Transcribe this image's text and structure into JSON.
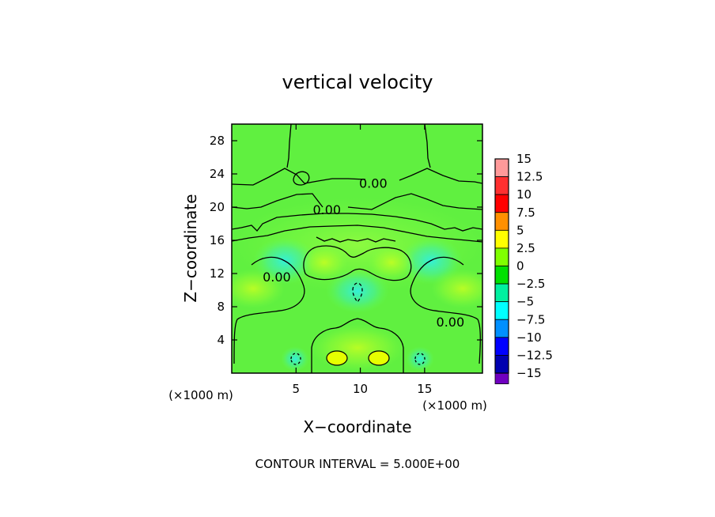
{
  "chart_data": {
    "type": "contour",
    "title": "vertical velocity",
    "xlabel": "X−coordinate",
    "ylabel": "Z−coordinate",
    "x_unit_label": "(×1000 m)",
    "z_unit_label": "(×1000 m)",
    "xlim": [
      0,
      19.5
    ],
    "ylim": [
      0,
      30
    ],
    "x_ticks": [
      5,
      10,
      15
    ],
    "y_ticks": [
      4,
      8,
      12,
      16,
      20,
      24,
      28
    ],
    "contour_interval_text": "CONTOUR INTERVAL = 5.000E+00",
    "contour_labels": [
      {
        "text": "0.00",
        "x": 11.0,
        "y": 22.9
      },
      {
        "text": "0.00",
        "x": 7.4,
        "y": 19.7
      },
      {
        "text": "0.00",
        "x": 3.5,
        "y": 11.6
      },
      {
        "text": "0.00",
        "x": 17.0,
        "y": 6.2
      }
    ],
    "colorbar": {
      "levels": [
        "15",
        "12.5",
        "10",
        "7.5",
        "5",
        "2.5",
        "0",
        "−2.5",
        "−5",
        "−7.5",
        "−10",
        "−12.5",
        "−15"
      ],
      "colors": [
        "#ff9a9a",
        "#ff3030",
        "#ff0000",
        "#ff9000",
        "#ffff00",
        "#80ff00",
        "#00e000",
        "#00f0a0",
        "#00ffff",
        "#0090ff",
        "#0000ff",
        "#0000b0",
        "#7000c0"
      ]
    },
    "features": {
      "background_value": 0.5,
      "positive_max": 5,
      "negative_min": -5
    }
  }
}
